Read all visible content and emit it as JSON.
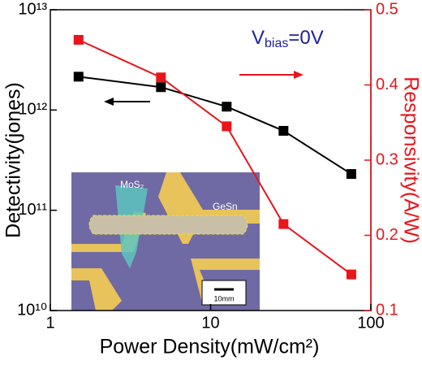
{
  "chart_data": {
    "type": "line",
    "x": [
      1.5,
      4.9,
      12.6,
      28.5,
      75.5
    ],
    "xlabel": "Power Density(mW/cm²)",
    "ylabel": "Detectivity(jones)",
    "y2label": "Responsivity(A/W)",
    "xlog": true,
    "ylog": true,
    "xlim": [
      1,
      100
    ],
    "xticks": [
      1,
      10,
      100
    ],
    "ylim": [
      10000000000.0,
      10000000000000.0
    ],
    "yticks": [
      {
        "value": 10000000000.0,
        "label": "10¹⁰"
      },
      {
        "value": 100000000000.0,
        "label": "10¹¹"
      },
      {
        "value": 1000000000000.0,
        "label": "10¹²"
      },
      {
        "value": 10000000000000.0,
        "label": "10¹³"
      }
    ],
    "y2lim": [
      0.1,
      0.5
    ],
    "y2ticks": [
      0.1,
      0.2,
      0.3,
      0.4,
      0.5
    ],
    "series": [
      {
        "color": "#000000",
        "values": [
          2150000000000.0,
          1690000000000.0,
          1080000000000.0,
          620000000000.0,
          230000000000.0
        ]
      },
      {
        "color": "#e8151b",
        "axis": "y2",
        "values": [
          0.46,
          0.41,
          0.345,
          0.215,
          0.148
        ]
      }
    ],
    "annotation": {
      "main": "V",
      "sub": "bias",
      "tail": "=0V"
    },
    "inset": {
      "material1": "MoS₂",
      "material2": "GeSn",
      "scale": "10mm"
    }
  }
}
